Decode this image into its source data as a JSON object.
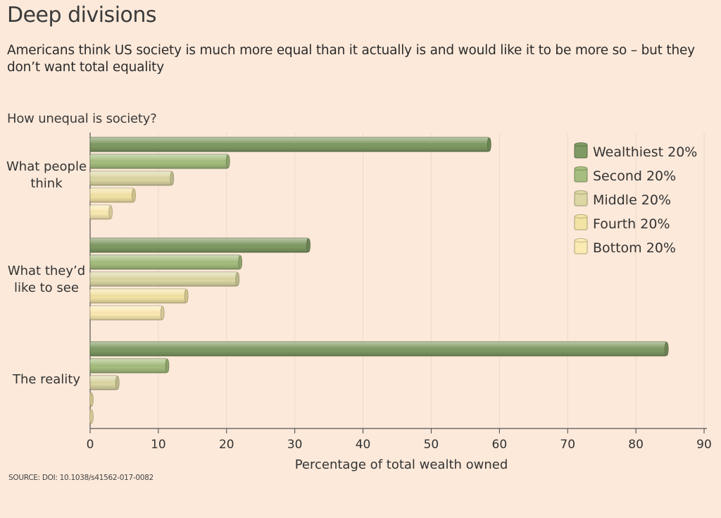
{
  "title": "Deep divisions",
  "subtitle": "Americans think US society is much more equal than it actually is and would like it to be more so – but they don’t want total equality",
  "section_label": "How unequal is society?",
  "source": "SOURCE: DOI: 10.1038/s41562-017-0082",
  "colors": {
    "background": "#fce9da",
    "Wealthiest 20%": "#7f9a63",
    "Second 20%": "#a5bd7e",
    "Middle 20%": "#dcd7a3",
    "Fourth 20%": "#f3e3a5",
    "Bottom 20%": "#fbeab2"
  },
  "chart_data": {
    "type": "bar",
    "orientation": "horizontal",
    "categories": [
      "What people think",
      "What they’d like to see",
      "The reality"
    ],
    "category_lines": [
      [
        "What people",
        "think"
      ],
      [
        "What they’d",
        "like to see"
      ],
      [
        "The reality"
      ]
    ],
    "series": [
      {
        "name": "Wealthiest 20%",
        "values": [
          58.5,
          32,
          84.5
        ]
      },
      {
        "name": "Second 20%",
        "values": [
          20.2,
          22,
          11.3
        ]
      },
      {
        "name": "Middle 20%",
        "values": [
          12,
          21.6,
          4
        ]
      },
      {
        "name": "Fourth 20%",
        "values": [
          6.4,
          14.1,
          0.2
        ]
      },
      {
        "name": "Bottom 20%",
        "values": [
          3,
          10.6,
          0.1
        ]
      }
    ],
    "xlabel": "Percentage of total wealth owned",
    "ylabel": "",
    "xlim": [
      0,
      90
    ],
    "xticks": [
      "0",
      "10",
      "20",
      "30",
      "40",
      "50",
      "60",
      "70",
      "80",
      "90"
    ],
    "grid": "vertical",
    "legend": "top-right"
  }
}
